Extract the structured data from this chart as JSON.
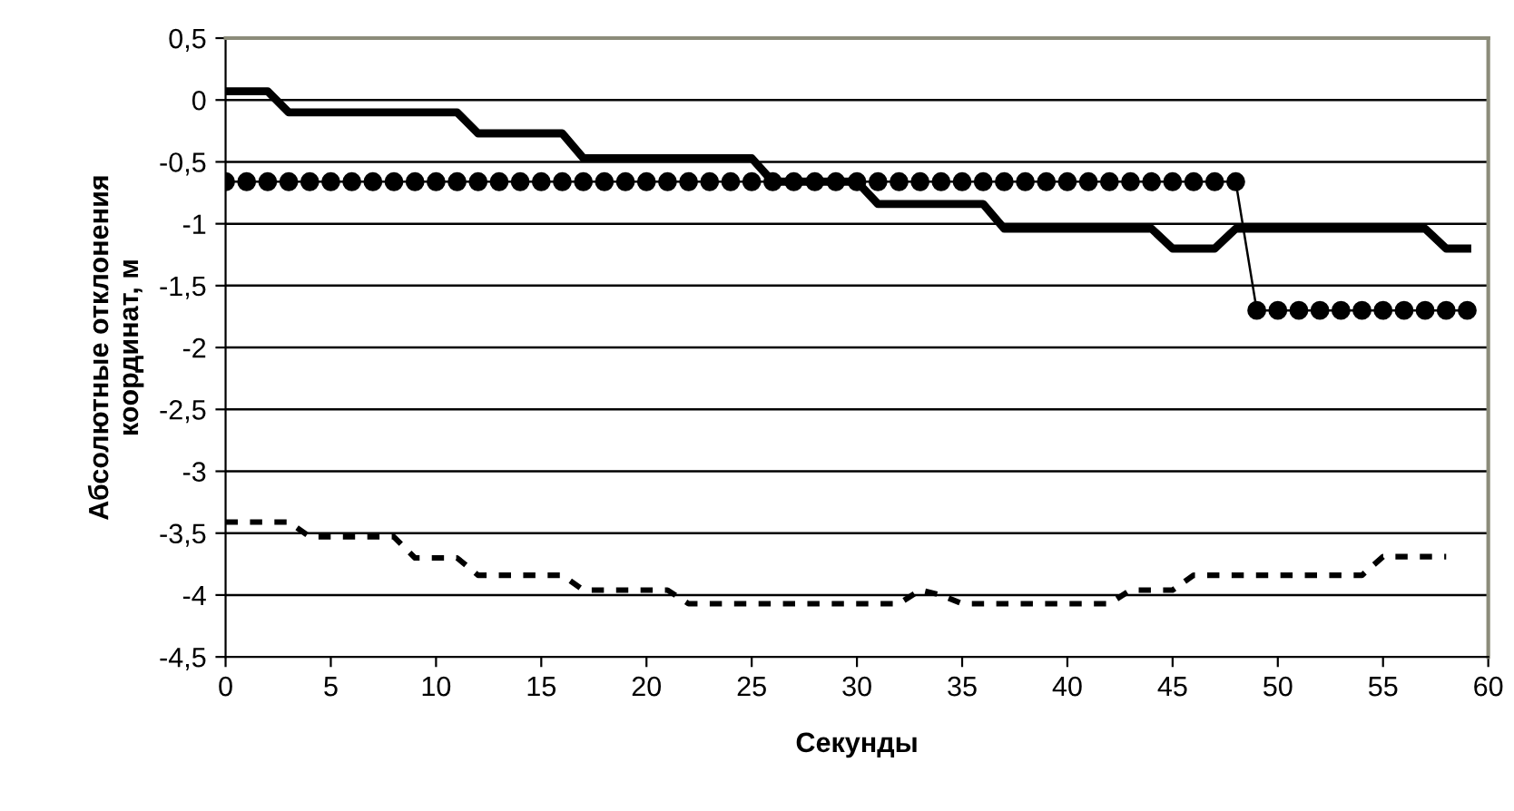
{
  "chart_data": {
    "type": "line",
    "xlabel": "Секунды",
    "ylabel": "Абсолютные отклонения\nкоординат, м",
    "x": [
      0,
      1,
      2,
      3,
      4,
      5,
      6,
      7,
      8,
      9,
      10,
      11,
      12,
      13,
      14,
      15,
      16,
      17,
      18,
      19,
      20,
      21,
      22,
      23,
      24,
      25,
      26,
      27,
      28,
      29,
      30,
      31,
      32,
      33,
      34,
      35,
      36,
      37,
      38,
      39,
      40,
      41,
      42,
      43,
      44,
      45,
      46,
      47,
      48,
      49,
      50,
      51,
      52,
      53,
      54,
      55,
      56,
      57,
      58,
      59
    ],
    "series": [
      {
        "color": "#000000",
        "line_style": "solid",
        "marker": "none",
        "values": [
          0.07,
          0.07,
          0.07,
          -0.1,
          -0.1,
          -0.1,
          -0.1,
          -0.1,
          -0.1,
          -0.1,
          -0.1,
          -0.1,
          -0.27,
          -0.27,
          -0.27,
          -0.27,
          -0.27,
          -0.47,
          -0.47,
          -0.47,
          -0.47,
          -0.47,
          -0.47,
          -0.47,
          -0.47,
          -0.47,
          -0.66,
          -0.66,
          -0.66,
          -0.66,
          -0.66,
          -0.84,
          -0.84,
          -0.84,
          -0.84,
          -0.84,
          -0.84,
          -1.04,
          -1.04,
          -1.04,
          -1.04,
          -1.04,
          -1.04,
          -1.04,
          -1.04,
          -1.2,
          -1.2,
          -1.2,
          -1.04,
          -1.04,
          -1.04,
          -1.04,
          -1.04,
          -1.04,
          -1.04,
          -1.04,
          -1.04,
          -1.04,
          -1.2,
          -1.2
        ]
      },
      {
        "color": "#000000",
        "line_style": "solid",
        "marker": "circle",
        "values": [
          -0.66,
          -0.66,
          -0.66,
          -0.66,
          -0.66,
          -0.66,
          -0.66,
          -0.66,
          -0.66,
          -0.66,
          -0.66,
          -0.66,
          -0.66,
          -0.66,
          -0.66,
          -0.66,
          -0.66,
          -0.66,
          -0.66,
          -0.66,
          -0.66,
          -0.66,
          -0.66,
          -0.66,
          -0.66,
          -0.66,
          -0.66,
          -0.66,
          -0.66,
          -0.66,
          -0.66,
          -0.66,
          -0.66,
          -0.66,
          -0.66,
          -0.66,
          -0.66,
          -0.66,
          -0.66,
          -0.66,
          -0.66,
          -0.66,
          -0.66,
          -0.66,
          -0.66,
          -0.66,
          -0.66,
          -0.66,
          -0.66,
          -1.7,
          -1.7,
          -1.7,
          -1.7,
          -1.7,
          -1.7,
          -1.7,
          -1.7,
          -1.7,
          -1.7,
          -1.7
        ]
      },
      {
        "color": "#000000",
        "line_style": "dashed",
        "marker": "none",
        "x": [
          0,
          1,
          2,
          3,
          4,
          5,
          6,
          7,
          8,
          9,
          10,
          11,
          12,
          13,
          14,
          15,
          16,
          17,
          18,
          19,
          20,
          21,
          22,
          23,
          24,
          25,
          26,
          27,
          28,
          29,
          30,
          31,
          32,
          33,
          34,
          35,
          36,
          37,
          38,
          39,
          40,
          41,
          42,
          43,
          44,
          45,
          46,
          47,
          48,
          49,
          50,
          51,
          52,
          53,
          54,
          55,
          56,
          57,
          58
        ],
        "values": [
          -3.41,
          -3.41,
          -3.41,
          -3.41,
          -3.53,
          -3.53,
          -3.53,
          -3.53,
          -3.53,
          -3.7,
          -3.7,
          -3.7,
          -3.84,
          -3.84,
          -3.84,
          -3.84,
          -3.84,
          -3.96,
          -3.96,
          -3.96,
          -3.96,
          -3.96,
          -4.07,
          -4.07,
          -4.07,
          -4.07,
          -4.07,
          -4.07,
          -4.07,
          -4.07,
          -4.07,
          -4.07,
          -4.07,
          -3.96,
          -4.0,
          -4.07,
          -4.07,
          -4.07,
          -4.07,
          -4.07,
          -4.07,
          -4.07,
          -4.07,
          -3.96,
          -3.96,
          -3.96,
          -3.84,
          -3.84,
          -3.84,
          -3.84,
          -3.84,
          -3.84,
          -3.84,
          -3.84,
          -3.84,
          -3.69,
          -3.69,
          -3.69,
          -3.69
        ]
      }
    ],
    "xlim": [
      0,
      60
    ],
    "xticks": [
      0,
      5,
      10,
      15,
      20,
      25,
      30,
      35,
      40,
      45,
      50,
      55,
      60
    ],
    "ylim": [
      -4.5,
      0.5
    ],
    "yticks": [
      {
        "value": 0.5,
        "label": "0,5"
      },
      0,
      {
        "value": -0.5,
        "label": "-0,5"
      },
      -1,
      {
        "value": -1.5,
        "label": "-1,5"
      },
      -2,
      {
        "value": -2.5,
        "label": "-2,5"
      },
      -3,
      {
        "value": -3.5,
        "label": "-3,5"
      },
      -4,
      {
        "value": -4.5,
        "label": "-4,5"
      }
    ],
    "grid": "y",
    "legend": false
  }
}
